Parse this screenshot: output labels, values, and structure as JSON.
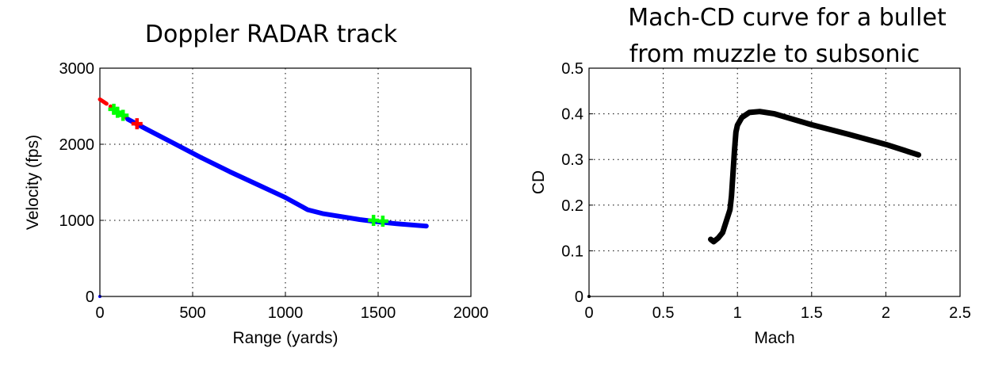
{
  "chart_data": [
    {
      "type": "line",
      "title": "Doppler RADAR track",
      "xlabel": "Range (yards)",
      "ylabel": "Velocity (fps)",
      "xlim": [
        0,
        2000
      ],
      "ylim": [
        0,
        3000
      ],
      "xticks": [
        0,
        500,
        1000,
        1500,
        2000
      ],
      "yticks": [
        0,
        1000,
        2000,
        3000
      ],
      "xtick_labels": [
        "0",
        "500",
        "1000",
        "1500",
        "2000"
      ],
      "ytick_labels": [
        "0",
        "1000",
        "2000",
        "3000"
      ],
      "grid": true,
      "series": [
        {
          "color": "#ff0000",
          "style": "dashed line",
          "x": [
            0,
            50,
            100,
            150,
            200
          ],
          "y": [
            2590,
            2510,
            2420,
            2340,
            2265
          ]
        },
        {
          "color": "#0000ff",
          "style": "thick line",
          "x": [
            150,
            250,
            400,
            550,
            700,
            850,
            1000,
            1120,
            1200,
            1300,
            1400,
            1500,
            1600,
            1760
          ],
          "y": [
            2330,
            2200,
            2010,
            1820,
            1640,
            1470,
            1300,
            1140,
            1090,
            1050,
            1010,
            980,
            955,
            925
          ]
        },
        {
          "color": "#00ff00",
          "style": "plus markers",
          "x": [
            75,
            95,
            125,
            1475,
            1525
          ],
          "y": [
            2460,
            2420,
            2380,
            1000,
            990
          ]
        },
        {
          "color": "#ff0000",
          "style": "plus markers",
          "x": [
            200
          ],
          "y": [
            2270
          ]
        },
        {
          "color": "#0000ff",
          "style": "point marker",
          "x": [
            0
          ],
          "y": [
            0
          ]
        }
      ]
    },
    {
      "type": "line",
      "title": "Mach-CD curve for a bullet from muzzle to subsonic",
      "title_lines": [
        "Mach-CD curve for a bullet",
        "from muzzle to subsonic"
      ],
      "xlabel": "Mach",
      "ylabel": "CD",
      "xlim": [
        0,
        2.5
      ],
      "ylim": [
        0,
        0.5
      ],
      "xticks": [
        0,
        0.5,
        1,
        1.5,
        2,
        2.5
      ],
      "yticks": [
        0,
        0.1,
        0.2,
        0.3,
        0.4,
        0.5
      ],
      "xtick_labels": [
        "0",
        "0.5",
        "1",
        "1.5",
        "2",
        "2.5"
      ],
      "ytick_labels": [
        "0",
        "0.1",
        "0.2",
        "0.3",
        "0.4",
        "0.5"
      ],
      "grid": true,
      "series": [
        {
          "color": "#000000",
          "style": "thick line",
          "x": [
            0.82,
            0.84,
            0.87,
            0.9,
            0.93,
            0.95,
            0.96,
            0.97,
            0.98,
            0.99,
            1.0,
            1.03,
            1.08,
            1.15,
            1.25,
            1.5,
            1.75,
            2.0,
            2.22
          ],
          "y": [
            0.125,
            0.12,
            0.128,
            0.14,
            0.17,
            0.19,
            0.22,
            0.27,
            0.32,
            0.36,
            0.375,
            0.392,
            0.403,
            0.405,
            0.4,
            0.376,
            0.355,
            0.333,
            0.31
          ]
        },
        {
          "color": "#000000",
          "style": "point marker",
          "x": [
            0
          ],
          "y": [
            0
          ]
        }
      ]
    }
  ]
}
